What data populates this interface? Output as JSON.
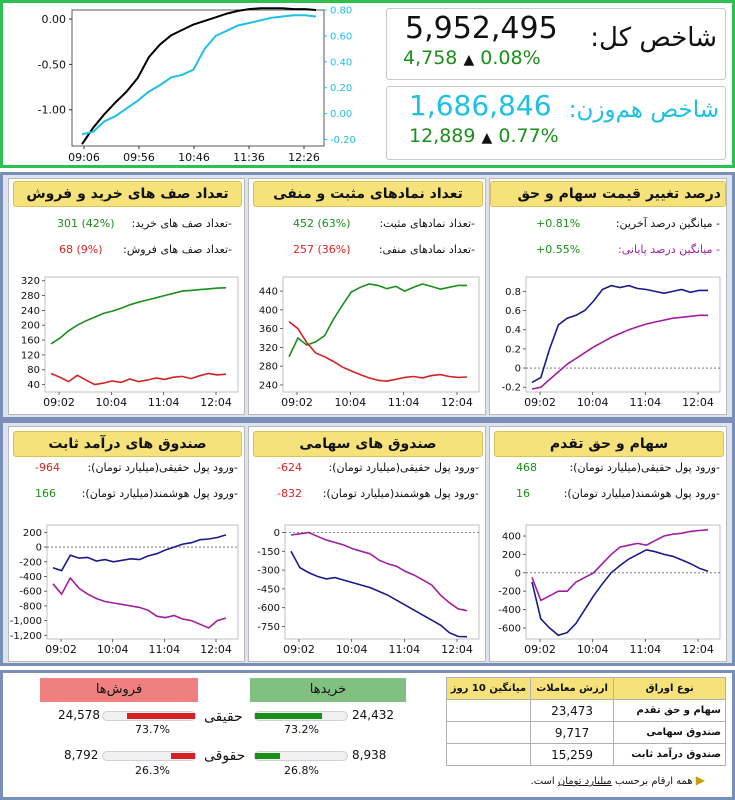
{
  "top": {
    "main_index": {
      "label": "شاخص کل:",
      "value": "5,952,495",
      "change": "4,758",
      "arrow": "▲",
      "percent": "0.08%"
    },
    "equal_index": {
      "label": "شاخص هم‌وزن:",
      "value": "1,686,846",
      "change": "12,889",
      "arrow": "▲",
      "percent": "0.77%"
    },
    "chart": {
      "x_ticks": [
        "09:06",
        "09:56",
        "10:46",
        "11:36",
        "12:26"
      ],
      "left_ticks": [
        "0.00",
        "-0.50",
        "-1.00"
      ],
      "right_ticks": [
        "0.80",
        "0.60",
        "0.40",
        "0.20",
        "0.00",
        "-0.20"
      ]
    }
  },
  "row1": {
    "a": {
      "title": "تعداد صف های خرید و فروش",
      "r1_label": "-تعداد صف های خرید:",
      "r1_value": "301",
      "r1_pct": "(42%)",
      "r2_label": "-تعداد صف های فروش:",
      "r2_value": "68",
      "r2_pct": "(9%)"
    },
    "b": {
      "title": "تعداد نمادهای مثبت و منفی",
      "r1_label": "-تعداد نمادهای مثبت:",
      "r1_value": "452",
      "r1_pct": "(63%)",
      "r2_label": "-تعداد نمادهای منفی:",
      "r2_value": "257",
      "r2_pct": "(36%)"
    },
    "c": {
      "title": "درصد تغییر قیمت سهام و حق تقدم ها",
      "r1_label": "- میانگین درصد آخرین:",
      "r1_value": "+0.81%",
      "r2_label": "- میانگین درصد پایانی:",
      "r2_value": "+0.55%"
    }
  },
  "row2": {
    "a": {
      "title": "صندوق های درآمد ثابت",
      "r1_label": "-ورود پول حقیقی(میلیارد تومان):",
      "r1_value": "-964",
      "r2_label": "-ورود پول هوشمند(میلیارد تومان):",
      "r2_value": "166"
    },
    "b": {
      "title": "صندوق های سهامی",
      "r1_label": "-ورود پول حقیقی(میلیارد تومان):",
      "r1_value": "-624",
      "r2_label": "-ورود پول هوشمند(میلیارد تومان):",
      "r2_value": "-832"
    },
    "c": {
      "title": "سهام و حق تقدم",
      "r1_label": "-ورود پول حقیقی(میلیارد تومان):",
      "r1_value": "468",
      "r2_label": "-ورود پول هوشمند(میلیارد تومان):",
      "r2_value": "16"
    }
  },
  "charts_x_ticks": [
    "09:02",
    "10:04",
    "11:04",
    "12:04"
  ],
  "chart_data": [
    {
      "type": "line",
      "id": "top",
      "x": [
        "09:06",
        "09:16",
        "09:26",
        "09:36",
        "09:46",
        "09:56",
        "10:06",
        "10:16",
        "10:26",
        "10:36",
        "10:46",
        "10:56",
        "11:06",
        "11:16",
        "11:26",
        "11:36",
        "11:46",
        "11:56",
        "12:06",
        "12:16",
        "12:26",
        "12:36"
      ],
      "series": [
        {
          "color": "#000000",
          "axis": "left",
          "values": [
            -1.38,
            -1.2,
            -1.05,
            -0.92,
            -0.8,
            -0.65,
            -0.42,
            -0.28,
            -0.18,
            -0.12,
            -0.06,
            -0.02,
            0.02,
            0.06,
            0.09,
            0.11,
            0.12,
            0.12,
            0.12,
            0.11,
            0.11,
            0.1
          ]
        },
        {
          "color": "#1ec0e6",
          "axis": "right",
          "values": [
            -0.16,
            -0.14,
            -0.06,
            -0.02,
            0.04,
            0.1,
            0.17,
            0.22,
            0.28,
            0.3,
            0.34,
            0.5,
            0.6,
            0.64,
            0.68,
            0.7,
            0.72,
            0.74,
            0.75,
            0.76,
            0.76,
            0.75
          ]
        }
      ],
      "ylim_left": [
        -1.4,
        0.1
      ],
      "ylim_right": [
        -0.25,
        0.8
      ]
    },
    {
      "type": "line",
      "id": "queues",
      "ylim": [
        20,
        330
      ],
      "y_ticks": [
        320,
        280,
        240,
        200,
        160,
        120,
        80,
        40
      ],
      "series": [
        {
          "color": "#1a8f1a",
          "values": [
            150,
            165,
            185,
            200,
            212,
            222,
            232,
            238,
            246,
            255,
            262,
            268,
            274,
            280,
            286,
            292,
            294,
            296,
            298,
            300,
            301
          ]
        },
        {
          "color": "#d22222",
          "values": [
            70,
            60,
            48,
            65,
            52,
            40,
            44,
            50,
            46,
            55,
            48,
            52,
            58,
            54,
            60,
            62,
            56,
            64,
            70,
            66,
            68
          ]
        }
      ]
    },
    {
      "type": "line",
      "id": "symbols",
      "ylim": [
        225,
        470
      ],
      "y_ticks": [
        440,
        400,
        360,
        320,
        280,
        240
      ],
      "series": [
        {
          "color": "#1a8f1a",
          "values": [
            300,
            340,
            325,
            332,
            345,
            380,
            410,
            438,
            448,
            455,
            452,
            445,
            450,
            440,
            448,
            455,
            450,
            444,
            448,
            452,
            452
          ]
        },
        {
          "color": "#d22222",
          "values": [
            375,
            360,
            330,
            308,
            300,
            290,
            278,
            270,
            262,
            255,
            250,
            248,
            252,
            256,
            258,
            255,
            260,
            262,
            258,
            256,
            257
          ]
        }
      ]
    },
    {
      "type": "line",
      "id": "pct",
      "ylim": [
        -0.25,
        0.95
      ],
      "y_ticks": [
        0.8,
        0.6,
        0.4,
        0.2,
        0.0,
        -0.2
      ],
      "series": [
        {
          "color": "#1a1a8c",
          "values": [
            -0.15,
            -0.1,
            0.2,
            0.45,
            0.52,
            0.55,
            0.6,
            0.7,
            0.82,
            0.86,
            0.84,
            0.86,
            0.83,
            0.82,
            0.8,
            0.78,
            0.8,
            0.82,
            0.79,
            0.81,
            0.81
          ]
        },
        {
          "color": "#a01ea0",
          "values": [
            -0.22,
            -0.2,
            -0.12,
            -0.04,
            0.04,
            0.1,
            0.16,
            0.22,
            0.27,
            0.32,
            0.36,
            0.4,
            0.43,
            0.46,
            0.48,
            0.5,
            0.52,
            0.53,
            0.54,
            0.55,
            0.55
          ]
        }
      ]
    },
    {
      "type": "line",
      "id": "fixed",
      "ylim": [
        -1250,
        300
      ],
      "y_ticks": [
        200,
        0,
        -200,
        -400,
        -600,
        -800,
        -1000,
        -1200
      ],
      "series": [
        {
          "color": "#1a1a8c",
          "values": [
            -280,
            -320,
            -110,
            -150,
            -140,
            -190,
            -170,
            -200,
            -180,
            -160,
            -170,
            -120,
            -90,
            -40,
            0,
            40,
            60,
            100,
            110,
            130,
            166
          ]
        },
        {
          "color": "#a01ea0",
          "values": [
            -500,
            -640,
            -420,
            -560,
            -640,
            -700,
            -740,
            -760,
            -780,
            -800,
            -820,
            -860,
            -940,
            -960,
            -930,
            -980,
            -1000,
            -1050,
            -1100,
            -1000,
            -964
          ]
        }
      ]
    },
    {
      "type": "line",
      "id": "equity_funds",
      "ylim": [
        -850,
        60
      ],
      "y_ticks": [
        0,
        -150,
        -300,
        -450,
        -600,
        -750
      ],
      "series": [
        {
          "color": "#a01ea0",
          "values": [
            -20,
            -10,
            0,
            -30,
            -60,
            -80,
            -100,
            -130,
            -150,
            -170,
            -220,
            -250,
            -270,
            -310,
            -340,
            -380,
            -420,
            -500,
            -560,
            -610,
            -624
          ]
        },
        {
          "color": "#1a1a8c",
          "values": [
            -150,
            -280,
            -320,
            -350,
            -370,
            -360,
            -380,
            -400,
            -420,
            -440,
            -470,
            -500,
            -540,
            -580,
            -620,
            -660,
            -700,
            -740,
            -800,
            -830,
            -832
          ]
        }
      ]
    },
    {
      "type": "line",
      "id": "stocks",
      "ylim": [
        -720,
        520
      ],
      "y_ticks": [
        400,
        200,
        0,
        -200,
        -400,
        -600
      ],
      "series": [
        {
          "color": "#a01ea0",
          "values": [
            -50,
            -300,
            -250,
            -200,
            -200,
            -100,
            -50,
            0,
            100,
            200,
            280,
            300,
            320,
            300,
            350,
            400,
            420,
            430,
            450,
            460,
            468
          ]
        },
        {
          "color": "#1a1a8c",
          "values": [
            -100,
            -500,
            -600,
            -680,
            -650,
            -550,
            -400,
            -250,
            -120,
            0,
            80,
            150,
            200,
            250,
            230,
            200,
            180,
            140,
            100,
            50,
            16
          ]
        }
      ]
    }
  ],
  "bottom": {
    "buys_header": "خریدها",
    "sells_header": "فروش‌ها",
    "haqiqi_label": "حقیقی",
    "hoquqi_label": "حقوقی",
    "buy_haqiqi_value": "24,432",
    "buy_haqiqi_pct": "73.2%",
    "buy_haqiqi_fill": 0.732,
    "buy_hoquqi_value": "8,938",
    "buy_hoquqi_pct": "26.8%",
    "buy_hoquqi_fill": 0.268,
    "sell_haqiqi_value": "24,578",
    "sell_haqiqi_pct": "73.7%",
    "sell_haqiqi_fill": 0.737,
    "sell_hoquqi_value": "8,792",
    "sell_hoquqi_pct": "26.3%",
    "sell_hoquqi_fill": 0.263,
    "table": {
      "headers": [
        "نوع اوراق",
        "ارزش معاملات",
        "میانگین 10 روز"
      ],
      "rows": [
        {
          "type": "سهام و حق تقدم",
          "value": "23,473",
          "avg": ""
        },
        {
          "type": "صندوق سهامی",
          "value": "9,717",
          "avg": ""
        },
        {
          "type": "صندوق درآمد ثابت",
          "value": "15,259",
          "avg": ""
        }
      ],
      "note_prefix": "همه ارقام برحسب ",
      "note_unit": "میلیارد تومان",
      "note_suffix": " است."
    }
  }
}
